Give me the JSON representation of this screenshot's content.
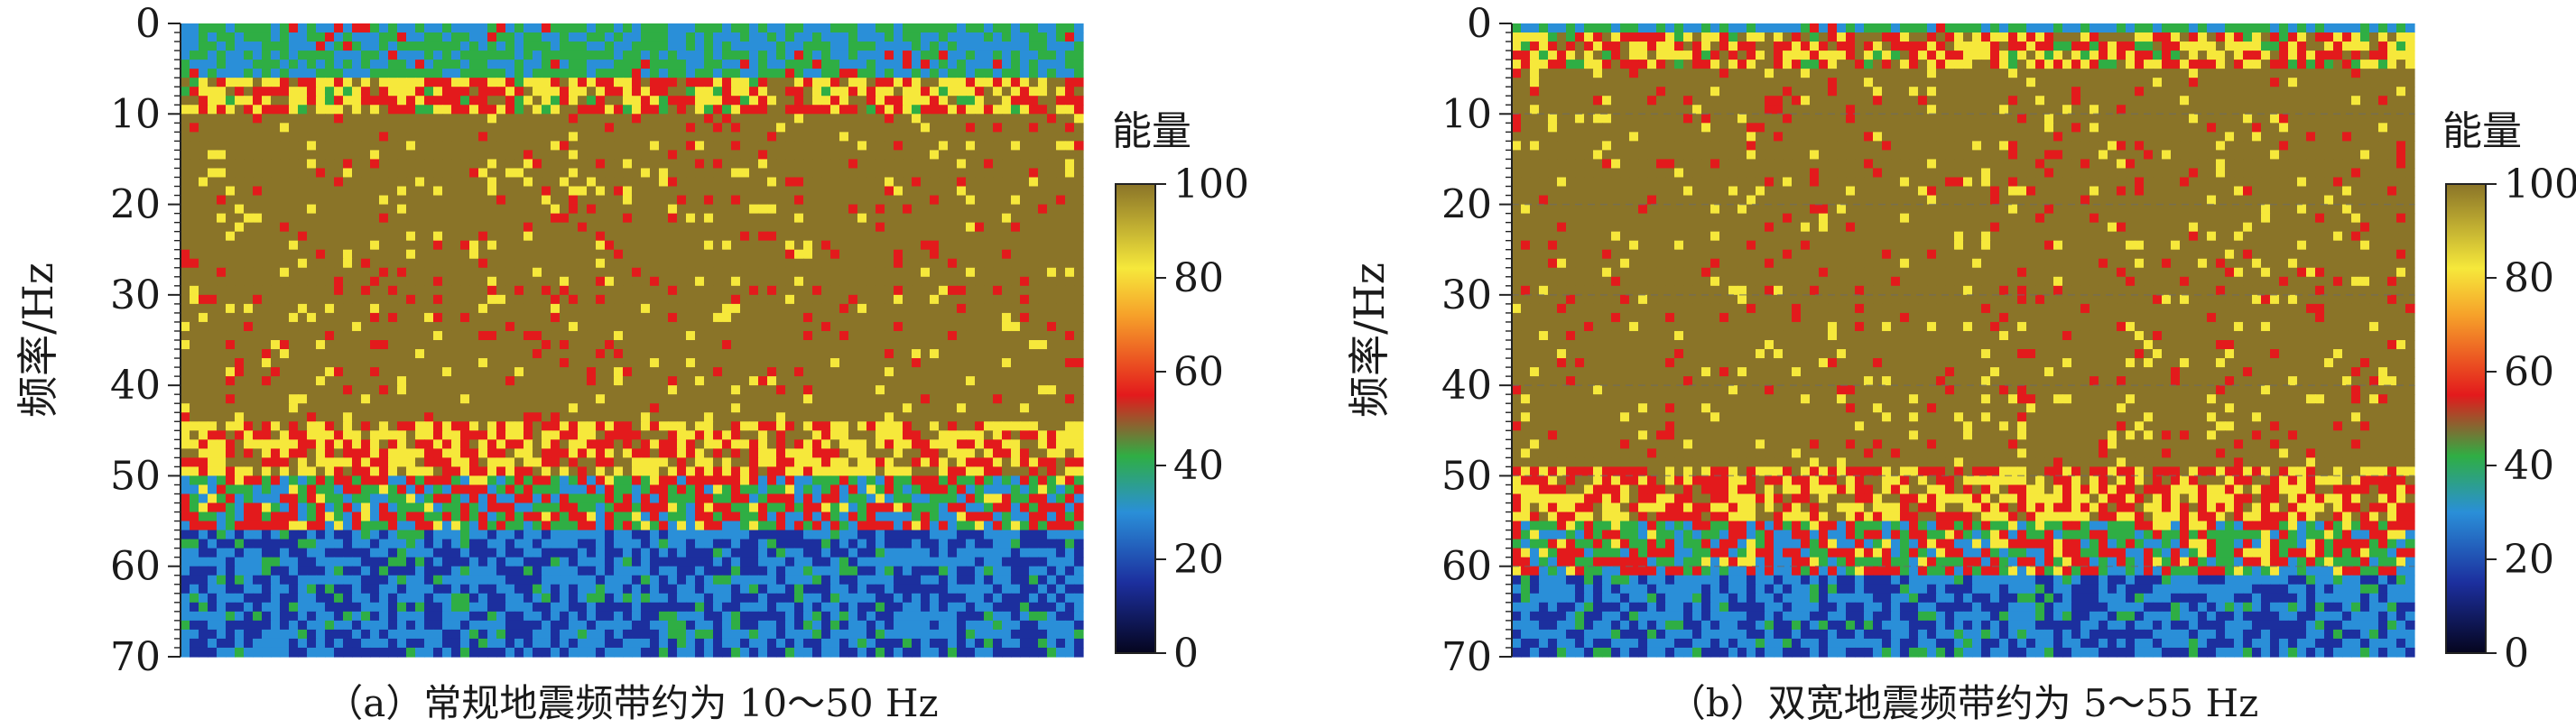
{
  "chart_data": [
    {
      "type": "heatmap",
      "panel": "a",
      "caption": "（a）常规地震频带约为 10～50 Hz",
      "ylabel": "频率/Hz",
      "yticks": [
        0,
        10,
        20,
        30,
        40,
        50,
        60,
        70
      ],
      "ylim": [
        0,
        70
      ],
      "y_reversed": true,
      "band_hz": [
        10,
        50
      ],
      "colorbar": {
        "title": "能量",
        "ticks": [
          0,
          20,
          40,
          60,
          80,
          100
        ],
        "range": [
          0,
          100
        ]
      }
    },
    {
      "type": "heatmap",
      "panel": "b",
      "caption": "（b）双宽地震频带约为 5～55 Hz",
      "ylabel": "频率/Hz",
      "yticks": [
        0,
        10,
        20,
        30,
        40,
        50,
        60,
        70
      ],
      "ylim": [
        0,
        70
      ],
      "y_reversed": true,
      "band_hz": [
        5,
        55
      ],
      "colorbar": {
        "title": "能量",
        "ticks": [
          0,
          20,
          40,
          60,
          80,
          100
        ],
        "range": [
          0,
          100
        ]
      },
      "grid": true
    }
  ],
  "colormap": [
    "#05051e",
    "#1c2f9e",
    "#2a8fd8",
    "#2fae44",
    "#e31a1c",
    "#f6e83b",
    "#8a7428"
  ]
}
